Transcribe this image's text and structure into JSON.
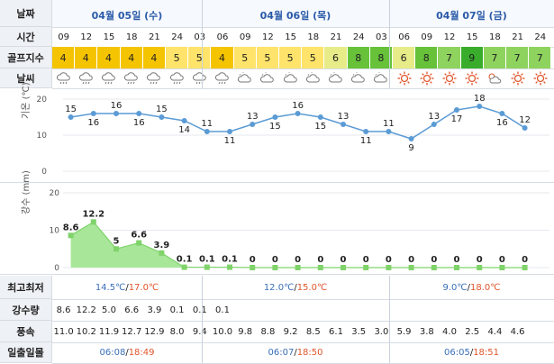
{
  "header": {
    "label_date": "날짜",
    "label_time": "시간",
    "label_golf": "골프지수",
    "label_weather": "날씨",
    "label_minmax": "최고최저",
    "label_rain": "강수량",
    "label_wind": "풍속",
    "label_sun": "일출일몰",
    "label_temp_axis": "기온 (℃)",
    "label_rain_axis": "강수 (mm)"
  },
  "days": [
    {
      "label": "04월 05일 (수)",
      "minmax_low": "14.5℃",
      "minmax_high": "17.0℃",
      "sunrise": "06:08",
      "sunset": "18:49"
    },
    {
      "label": "04월 06일 (목)",
      "minmax_low": "12.0℃",
      "minmax_high": "15.0℃",
      "sunrise": "06:07",
      "sunset": "18:50"
    },
    {
      "label": "04월 07일 (금)",
      "minmax_low": "9.0℃",
      "minmax_high": "18.0℃",
      "sunrise": "06:05",
      "sunset": "18:51"
    }
  ],
  "times": [
    "09",
    "12",
    "15",
    "18",
    "21",
    "24",
    "03",
    "06",
    "09",
    "12",
    "15",
    "18",
    "21",
    "24",
    "03",
    "06",
    "09",
    "12",
    "15",
    "18",
    "21",
    "24"
  ],
  "golf_index": [
    "4",
    "4",
    "4",
    "4",
    "4",
    "5",
    "5",
    "4",
    "5",
    "5",
    "5",
    "5",
    "6",
    "8",
    "8",
    "6",
    "8",
    "7",
    "9",
    "7",
    "7",
    "7"
  ],
  "golf_colors": {
    "4": "#f5c400",
    "5": "#ffe36a",
    "6": "#e7ec89",
    "7": "#8fd35f",
    "8": "#67c23a",
    "9": "#39ad2b"
  },
  "weather_icons": [
    "rain-icon",
    "rain-icon",
    "rain-icon",
    "rain-icon",
    "rain-icon",
    "rain-icon",
    "rain-icon",
    "rain-icon",
    "cloud-icon",
    "cloud-icon",
    "cloud-icon",
    "cloud-icon",
    "cloud-icon",
    "cloud-icon",
    "cloud-icon",
    "sun-icon",
    "sun-icon",
    "sun-icon",
    "sun-icon",
    "partly-cloudy-icon",
    "sun-icon",
    "sun-icon"
  ],
  "temperature": {
    "axis_ticks": [
      "20",
      "10",
      "0"
    ],
    "values": [
      15,
      16,
      16,
      16,
      15,
      14,
      11,
      11,
      13,
      15,
      16,
      15,
      13,
      11,
      11,
      9,
      13,
      17,
      18,
      16,
      12
    ]
  },
  "precip": {
    "axis_ticks": [
      "20",
      "10",
      "0"
    ],
    "values": [
      8.6,
      12.2,
      5,
      6.6,
      3.9,
      0.1,
      0.1,
      0.1,
      0,
      0,
      0,
      0,
      0,
      0,
      0,
      0,
      0,
      0,
      0,
      0,
      0
    ],
    "labels": [
      "8.6",
      "12.2",
      "5",
      "6.6",
      "3.9",
      "0.1",
      "0.1",
      "0.1",
      "0",
      "0",
      "0",
      "0",
      "0",
      "0",
      "0",
      "0",
      "0",
      "0",
      "0",
      "0",
      "0"
    ]
  },
  "rain_amounts": [
    "8.6",
    "12.2",
    "5.0",
    "6.6",
    "3.9",
    "0.1",
    "0.1",
    "0.1",
    "",
    "",
    "",
    "",
    "",
    "",
    "",
    "",
    "",
    "",
    "",
    "",
    "",
    ""
  ],
  "wind_speeds": [
    "11.0",
    "10.2",
    "11.9",
    "12.7",
    "12.9",
    "8.0",
    "9.4",
    "10.0",
    "9.8",
    "8.8",
    "9.2",
    "8.5",
    "6.1",
    "3.5",
    "3.0",
    "5.9",
    "3.8",
    "4.0",
    "2.5",
    "4.4",
    "4.6",
    ""
  ],
  "colors": {
    "temp_line": "#5b9bd5",
    "precip_fill": "#a8e69a",
    "precip_line": "#7fd36a",
    "red": "#e0552a",
    "blue": "#3a6fb8"
  }
}
